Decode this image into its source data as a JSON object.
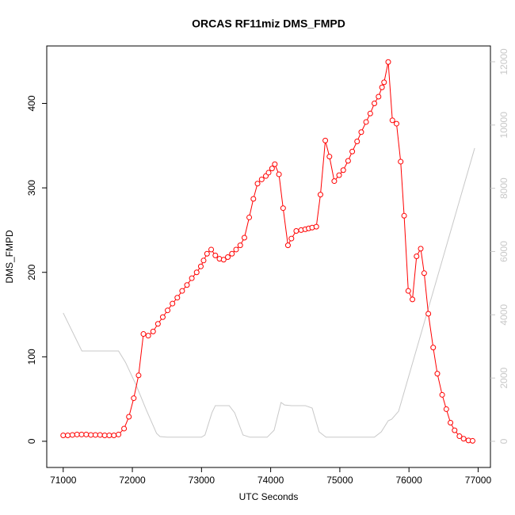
{
  "chart_data": {
    "type": "line",
    "title": "ORCAS RF11miz DMS_FMPD",
    "x_label": "UTC Seconds",
    "y_label": "DMS_FMPD",
    "xlim": [
      70762,
      77178
    ],
    "xticks": [
      71000,
      72000,
      73000,
      74000,
      75000,
      76000,
      77000
    ],
    "ylim": [
      -31,
      468
    ],
    "yticks": [
      0,
      100,
      200,
      300,
      400
    ],
    "y2lim": [
      -827,
      12500
    ],
    "y2ticks": [
      0,
      2000,
      4000,
      6000,
      8000,
      10000,
      12000
    ],
    "y2_color": "#c8c8c8",
    "series": [
      {
        "color": "#ff0000",
        "marker": "circle",
        "x": [
          71000,
          71066,
          71133,
          71200,
          71266,
          71333,
          71400,
          71466,
          71533,
          71600,
          71666,
          71733,
          71800,
          71880,
          71950,
          72020,
          72090,
          72160,
          72230,
          72300,
          72370,
          72440,
          72510,
          72580,
          72650,
          72720,
          72790,
          72860,
          72930,
          72990,
          73030,
          73080,
          73140,
          73200,
          73260,
          73320,
          73380,
          73440,
          73500,
          73560,
          73620,
          73690,
          73750,
          73810,
          73870,
          73930,
          73970,
          74020,
          74060,
          74120,
          74180,
          74250,
          74300,
          74370,
          74440,
          74500,
          74550,
          74600,
          74660,
          74720,
          74790,
          74850,
          74920,
          74990,
          75050,
          75120,
          75180,
          75250,
          75310,
          75380,
          75440,
          75500,
          75560,
          75610,
          75640,
          75700,
          75760,
          75820,
          75880,
          75930,
          75990,
          76050,
          76110,
          76170,
          76220,
          76280,
          76350,
          76410,
          76480,
          76540,
          76600,
          76660,
          76730,
          76790,
          76860,
          76920
        ],
        "values": [
          7,
          7,
          7.5,
          8,
          8,
          8,
          7.5,
          7.5,
          7.5,
          7,
          7,
          7,
          8,
          15,
          29,
          51,
          78,
          127,
          125,
          130,
          139,
          147,
          155,
          163,
          170,
          178,
          185,
          193,
          200,
          207,
          214,
          222,
          227,
          220,
          216,
          215,
          218,
          222,
          227,
          232,
          241,
          265,
          287,
          305,
          310,
          314,
          318,
          323,
          328,
          316,
          276,
          232,
          240,
          249,
          250,
          251,
          252,
          253,
          254,
          292,
          356,
          337,
          308,
          315,
          321,
          332,
          343,
          355,
          366,
          378,
          388,
          400,
          408,
          419,
          425,
          449,
          380,
          376,
          331,
          267,
          178,
          168,
          219,
          228,
          199,
          151,
          111,
          80,
          55,
          38,
          22,
          13,
          6,
          3,
          1,
          0.5
        ]
      },
      {
        "color": "#c8c8c8",
        "axis": "y2",
        "x": [
          71000,
          71270,
          71800,
          71900,
          72050,
          72200,
          72350,
          72400,
          72500,
          73000,
          73050,
          73150,
          73200,
          73400,
          73480,
          73600,
          73700,
          73950,
          74050,
          74150,
          74200,
          74300,
          74500,
          74600,
          74700,
          74800,
          75500,
          75600,
          75700,
          75750,
          75850,
          76950
        ],
        "values": [
          4060,
          2857,
          2857,
          2500,
          1800,
          1000,
          250,
          150,
          130,
          130,
          200,
          900,
          1128,
          1128,
          900,
          200,
          130,
          130,
          350,
          1228,
          1150,
          1128,
          1128,
          1050,
          300,
          130,
          130,
          300,
          650,
          700,
          950,
          9270
        ]
      }
    ]
  }
}
